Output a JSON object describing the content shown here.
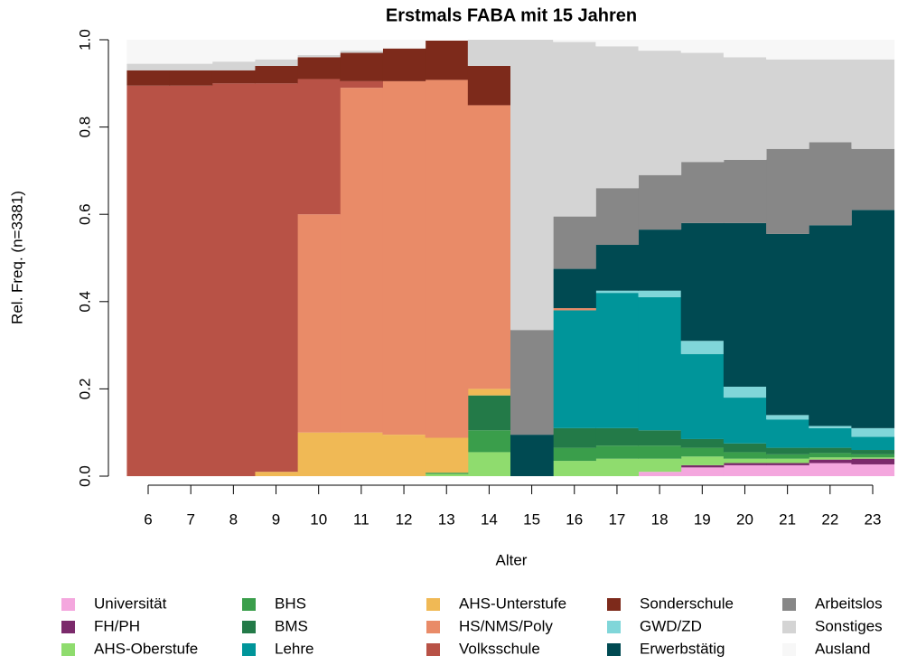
{
  "chart_data": {
    "type": "bar",
    "stacked": true,
    "title": "Erstmals FABA mit 15 Jahren",
    "x_label": "Alter",
    "y_label": "Rel. Freq. (n=3381)",
    "categories": [
      "6",
      "7",
      "8",
      "9",
      "10",
      "11",
      "12",
      "13",
      "14",
      "15",
      "16",
      "17",
      "18",
      "19",
      "20",
      "21",
      "22",
      "23"
    ],
    "ylim": [
      0,
      1
    ],
    "yticks": [
      {
        "value": 0,
        "label": "0.0"
      },
      {
        "value": 0.2,
        "label": "0.2"
      },
      {
        "value": 0.4,
        "label": "0.4"
      },
      {
        "value": 0.6,
        "label": "0.6"
      },
      {
        "value": 0.8,
        "label": "0.8"
      },
      {
        "value": 1,
        "label": "1.0"
      }
    ],
    "series": [
      {
        "name": "Universität",
        "color": "#f4a7de",
        "values": [
          0,
          0,
          0,
          0,
          0,
          0,
          0,
          0,
          0,
          0,
          0,
          0,
          0.01,
          0.02,
          0.025,
          0.025,
          0.03,
          0.027
        ]
      },
      {
        "name": "FH/PH",
        "color": "#7b2a6b",
        "values": [
          0,
          0,
          0,
          0,
          0,
          0,
          0,
          0,
          0,
          0,
          0,
          0,
          0,
          0.005,
          0.005,
          0.005,
          0.008,
          0.013
        ]
      },
      {
        "name": "AHS-Oberstufe",
        "color": "#8fdc6e",
        "values": [
          0,
          0,
          0,
          0,
          0,
          0,
          0,
          0.005,
          0.055,
          0,
          0.035,
          0.04,
          0.03,
          0.02,
          0.01,
          0.01,
          0.005,
          0.003
        ]
      },
      {
        "name": "BHS",
        "color": "#3a9e4b",
        "values": [
          0,
          0,
          0,
          0,
          0,
          0,
          0,
          0.003,
          0.05,
          0,
          0.03,
          0.03,
          0.03,
          0.02,
          0.015,
          0.01,
          0.01,
          0.007
        ]
      },
      {
        "name": "BMS",
        "color": "#237a48",
        "values": [
          0,
          0,
          0,
          0,
          0,
          0,
          0,
          0,
          0.08,
          0,
          0.045,
          0.04,
          0.035,
          0.02,
          0.02,
          0.015,
          0.012,
          0.01
        ]
      },
      {
        "name": "Lehre",
        "color": "#00959a",
        "values": [
          0,
          0,
          0,
          0,
          0,
          0,
          0,
          0,
          0,
          0,
          0.27,
          0.31,
          0.305,
          0.195,
          0.105,
          0.065,
          0.045,
          0.03
        ]
      },
      {
        "name": "AHS-Unterstufe",
        "color": "#f0b955",
        "values": [
          0,
          0,
          0,
          0.01,
          0.1,
          0.1,
          0.095,
          0.08,
          0.015,
          0,
          0,
          0,
          0,
          0,
          0,
          0,
          0,
          0
        ]
      },
      {
        "name": "HS/NMS/Poly",
        "color": "#e98b68",
        "values": [
          0,
          0,
          0,
          0,
          0.5,
          0.79,
          0.81,
          0.82,
          0.65,
          0,
          0.005,
          0,
          0,
          0,
          0,
          0,
          0,
          0
        ]
      },
      {
        "name": "Volksschule",
        "color": "#b85246",
        "values": [
          0.895,
          0.895,
          0.9,
          0.89,
          0.31,
          0.015,
          0,
          0,
          0,
          0,
          0,
          0,
          0,
          0,
          0,
          0,
          0,
          0
        ]
      },
      {
        "name": "Sonderschule",
        "color": "#7d2a1b",
        "values": [
          0.035,
          0.035,
          0.03,
          0.04,
          0.05,
          0.065,
          0.075,
          0.09,
          0.09,
          0,
          0,
          0,
          0,
          0,
          0,
          0,
          0,
          0
        ]
      },
      {
        "name": "GWD/ZD",
        "color": "#80d6d9",
        "values": [
          0,
          0,
          0,
          0,
          0,
          0,
          0,
          0,
          0,
          0,
          0,
          0.005,
          0.015,
          0.03,
          0.025,
          0.01,
          0.005,
          0.02
        ]
      },
      {
        "name": "Erwerbstätig",
        "color": "#004a52",
        "values": [
          0,
          0,
          0,
          0,
          0,
          0,
          0,
          0,
          0,
          0.095,
          0.09,
          0.105,
          0.14,
          0.27,
          0.375,
          0.415,
          0.46,
          0.5
        ]
      },
      {
        "name": "Arbeitslos",
        "color": "#878787",
        "values": [
          0,
          0,
          0,
          0,
          0,
          0,
          0,
          0,
          0,
          0.24,
          0.12,
          0.13,
          0.125,
          0.14,
          0.145,
          0.195,
          0.19,
          0.14
        ]
      },
      {
        "name": "Sonstiges",
        "color": "#d4d4d4",
        "values": [
          0.015,
          0.015,
          0.02,
          0.015,
          0.005,
          0.005,
          0,
          0,
          0.06,
          0.665,
          0.4,
          0.325,
          0.285,
          0.25,
          0.235,
          0.205,
          0.19,
          0.205
        ]
      },
      {
        "name": "Ausland",
        "color": "#f7f7f7",
        "values": [
          0.055,
          0.055,
          0.05,
          0.045,
          0.035,
          0.025,
          0.02,
          0,
          0,
          0,
          0.005,
          0.015,
          0.025,
          0.03,
          0.04,
          0.045,
          0.045,
          0.045
        ]
      }
    ]
  }
}
